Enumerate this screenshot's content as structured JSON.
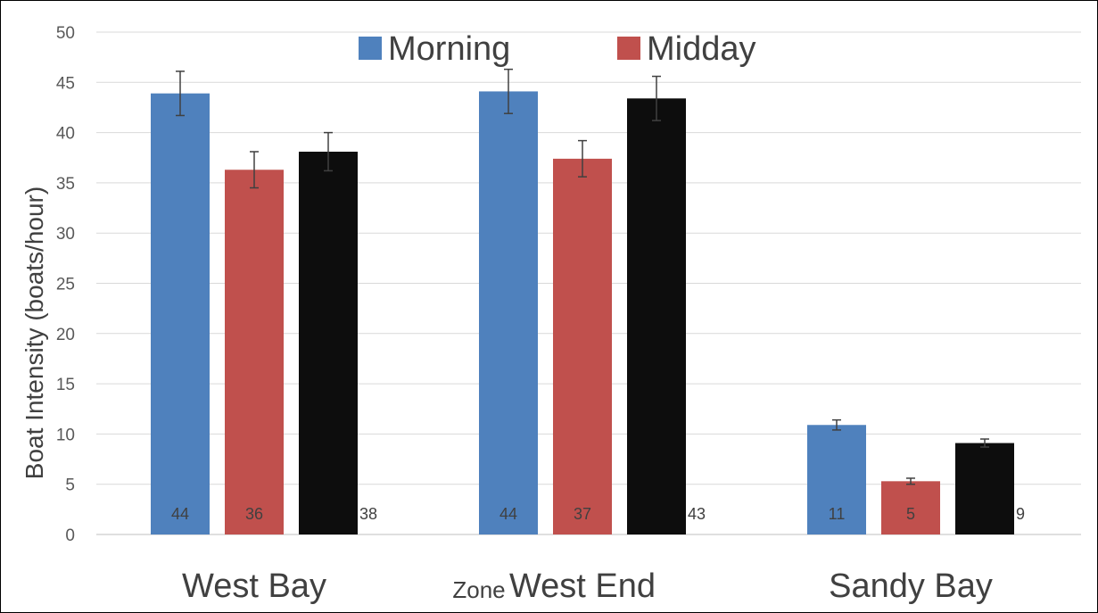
{
  "chart_data": {
    "type": "bar",
    "title": "",
    "xlabel": "Zone",
    "ylabel": "Boat Intensity (boats/hour)",
    "ylim": [
      0,
      50
    ],
    "yticks": [
      0,
      5,
      10,
      15,
      20,
      25,
      30,
      35,
      40,
      45,
      50
    ],
    "grid": true,
    "legend_position": "top",
    "categories": [
      "West Bay",
      "West End",
      "Sandy Bay"
    ],
    "series": [
      {
        "name": "Morning",
        "color": "#4F81BD",
        "values": [
          43.9,
          44.1,
          10.9
        ],
        "error": [
          2.2,
          2.2,
          0.5
        ],
        "labels": [
          "44",
          "44",
          "11"
        ],
        "label_position": "inside"
      },
      {
        "name": "Midday",
        "color": "#C0504D",
        "values": [
          36.3,
          37.4,
          5.3
        ],
        "error": [
          1.8,
          1.8,
          0.3
        ],
        "labels": [
          "36",
          "37",
          "5"
        ],
        "label_position": "inside"
      },
      {
        "name": "",
        "color": "#0D0D0D",
        "values": [
          38.1,
          43.4,
          9.1
        ],
        "error": [
          1.9,
          2.2,
          0.4
        ],
        "labels": [
          "38",
          "43",
          "9"
        ],
        "label_position": "outside"
      }
    ]
  }
}
